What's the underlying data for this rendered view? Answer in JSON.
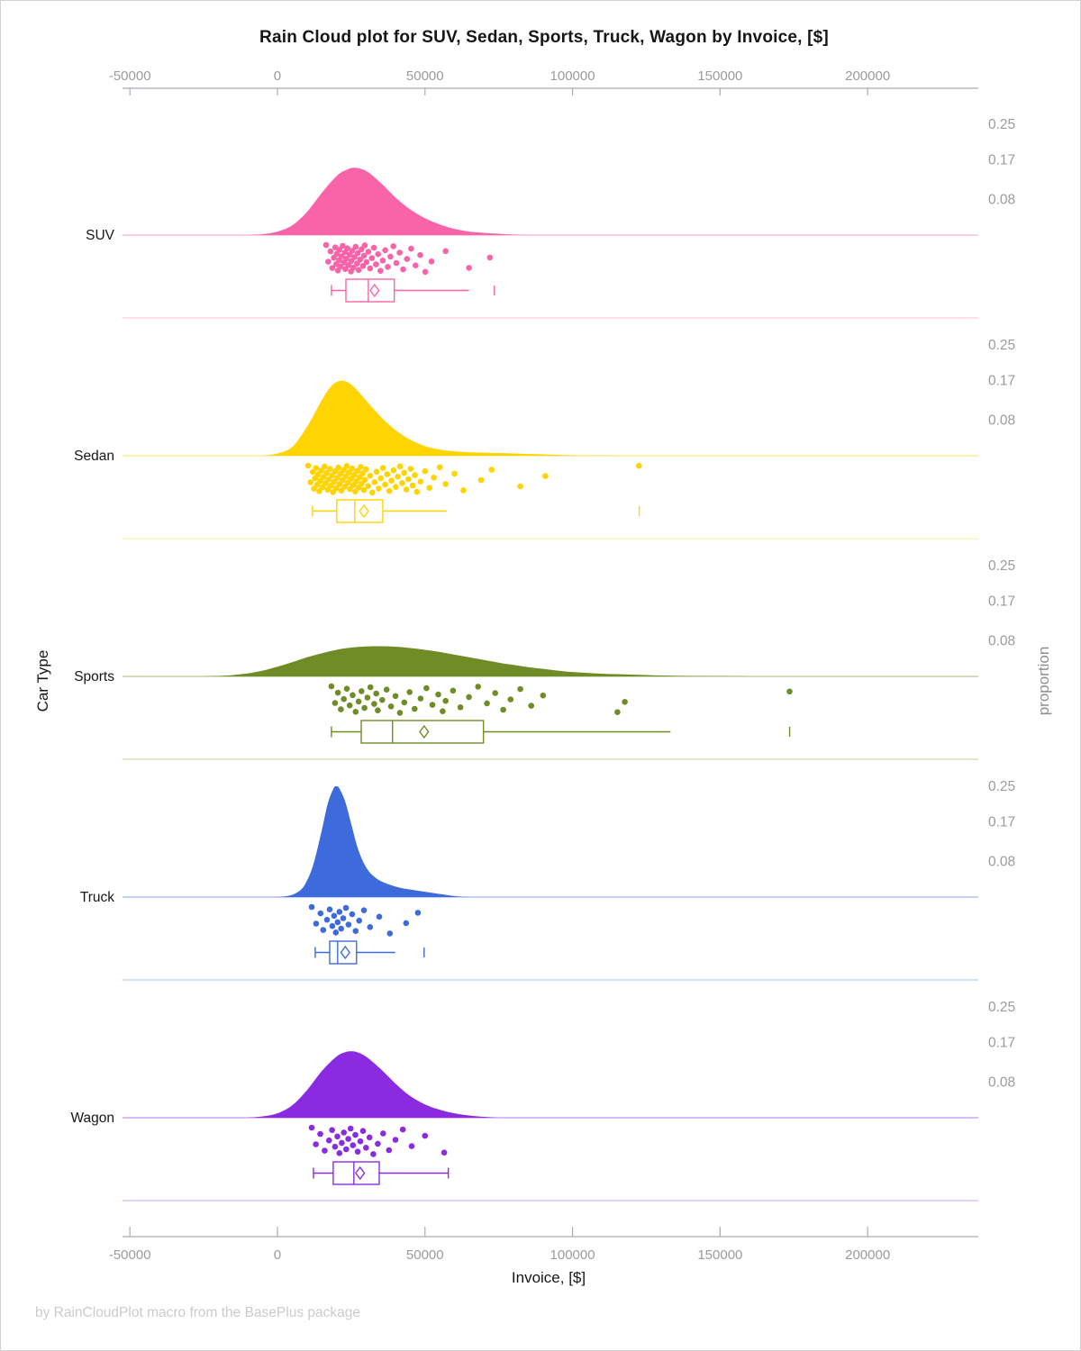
{
  "page": {
    "footer": "by RainCloudPlot macro from the BasePlus package",
    "background": "#ffffff",
    "border_color": "#d3d3d3"
  },
  "chart_data": {
    "type": "raincloud",
    "title": "Rain Cloud plot for SUV, Sedan, Sports, Truck, Wagon by Invoice, [$]",
    "xlabel": "Invoice, [$]",
    "ylabel_left": "Car Type",
    "ylabel_right": "proportion",
    "legend": "none",
    "grid": "off",
    "axis_text_color": "#9b9b9b",
    "axis_line_color": "#a9adb2",
    "text_color": "#161616",
    "x_axis": {
      "ticks": [
        -50000,
        0,
        50000,
        100000,
        150000,
        200000
      ],
      "range": [
        -52500,
        237500
      ],
      "position": "top and bottom"
    },
    "proportion_axis": {
      "tick_labels": [
        "0.25",
        "0.17",
        "0.08"
      ],
      "tick_values": [
        0.25,
        0.17,
        0.08
      ],
      "position": "right, repeated per panel"
    },
    "categories": [
      {
        "label": "SUV",
        "color": "#f964a9",
        "density": [
          [
            -10000,
            0
          ],
          [
            -5000,
            0.002
          ],
          [
            0,
            0.008
          ],
          [
            5000,
            0.022
          ],
          [
            10000,
            0.052
          ],
          [
            15000,
            0.095
          ],
          [
            20000,
            0.133
          ],
          [
            23000,
            0.146
          ],
          [
            26000,
            0.152
          ],
          [
            30000,
            0.145
          ],
          [
            35000,
            0.118
          ],
          [
            40000,
            0.085
          ],
          [
            45000,
            0.058
          ],
          [
            50000,
            0.038
          ],
          [
            55000,
            0.024
          ],
          [
            60000,
            0.014
          ],
          [
            65000,
            0.008
          ],
          [
            70000,
            0.005
          ],
          [
            75000,
            0.003
          ],
          [
            80000,
            0.001
          ],
          [
            85000,
            0
          ]
        ],
        "points": [
          16500,
          17200,
          18000,
          18600,
          19100,
          19600,
          19900,
          20100,
          20500,
          20900,
          21000,
          21300,
          21700,
          22100,
          22500,
          22900,
          23000,
          23300,
          23700,
          24100,
          24500,
          24900,
          25000,
          25300,
          25700,
          26100,
          26500,
          27000,
          27200,
          27500,
          28000,
          28500,
          29000,
          29300,
          29600,
          30200,
          30800,
          31400,
          32000,
          32700,
          33400,
          34100,
          34900,
          35700,
          36500,
          37400,
          38300,
          39300,
          40300,
          41400,
          42600,
          43900,
          45300,
          46800,
          48400,
          50100,
          52200,
          57000,
          64900,
          72000
        ],
        "box": {
          "whisker_low": 18300,
          "q1": 23200,
          "median": 30800,
          "mean": 32900,
          "q3": 39600,
          "whisker_high": 64900,
          "outliers": [
            73500
          ]
        }
      },
      {
        "label": "Sedan",
        "color": "#ffd400",
        "density": [
          [
            -5000,
            0
          ],
          [
            0,
            0.005
          ],
          [
            5000,
            0.02
          ],
          [
            10000,
            0.065
          ],
          [
            15000,
            0.125
          ],
          [
            18000,
            0.155
          ],
          [
            21000,
            0.169
          ],
          [
            24000,
            0.165
          ],
          [
            27000,
            0.148
          ],
          [
            30000,
            0.125
          ],
          [
            35000,
            0.088
          ],
          [
            40000,
            0.058
          ],
          [
            45000,
            0.036
          ],
          [
            50000,
            0.022
          ],
          [
            55000,
            0.014
          ],
          [
            60000,
            0.01
          ],
          [
            65000,
            0.008
          ],
          [
            70000,
            0.007
          ],
          [
            75000,
            0.006
          ],
          [
            80000,
            0.005
          ],
          [
            85000,
            0.004
          ],
          [
            90000,
            0.003
          ],
          [
            95000,
            0.002
          ],
          [
            100000,
            0.001
          ],
          [
            110000,
            0.0005
          ],
          [
            120000,
            0
          ]
        ],
        "points": [
          10400,
          11200,
          12000,
          12360,
          12720,
          13080,
          13440,
          13800,
          14160,
          14520,
          14880,
          15240,
          15600,
          15960,
          16320,
          16680,
          17040,
          17400,
          17760,
          18120,
          18480,
          18840,
          19200,
          19560,
          19920,
          20280,
          20640,
          21000,
          21360,
          21720,
          22080,
          22440,
          22800,
          23160,
          23520,
          23880,
          24240,
          24600,
          24960,
          25320,
          25680,
          26040,
          26400,
          26760,
          27120,
          27480,
          27840,
          28200,
          28560,
          28920,
          29280,
          29640,
          30000,
          30720,
          31440,
          32160,
          32880,
          33600,
          34320,
          35040,
          35760,
          36480,
          37200,
          37920,
          38640,
          39360,
          40080,
          40800,
          41520,
          42240,
          42960,
          43680,
          44400,
          45120,
          45840,
          46560,
          47280,
          48500,
          50000,
          51500,
          53000,
          55000,
          57000,
          60000,
          63000,
          69000,
          72600,
          82300,
          90800,
          122500
        ],
        "box": {
          "whisker_low": 11900,
          "q1": 20100,
          "median": 26200,
          "mean": 29300,
          "q3": 35700,
          "whisker_high": 57300,
          "outliers": [
            122600
          ]
        }
      },
      {
        "label": "Sports",
        "color": "#6f8c26",
        "density": [
          [
            -25000,
            0
          ],
          [
            -20000,
            0.001
          ],
          [
            -15000,
            0.003
          ],
          [
            -10000,
            0.007
          ],
          [
            -5000,
            0.013
          ],
          [
            0,
            0.022
          ],
          [
            5000,
            0.032
          ],
          [
            10000,
            0.043
          ],
          [
            15000,
            0.052
          ],
          [
            20000,
            0.06
          ],
          [
            25000,
            0.065
          ],
          [
            30000,
            0.0675
          ],
          [
            35000,
            0.068
          ],
          [
            40000,
            0.067
          ],
          [
            45000,
            0.064
          ],
          [
            50000,
            0.06
          ],
          [
            55000,
            0.055
          ],
          [
            60000,
            0.049
          ],
          [
            65000,
            0.043
          ],
          [
            70000,
            0.037
          ],
          [
            75000,
            0.031
          ],
          [
            80000,
            0.026
          ],
          [
            85000,
            0.021
          ],
          [
            90000,
            0.017
          ],
          [
            95000,
            0.013
          ],
          [
            100000,
            0.01
          ],
          [
            105000,
            0.008
          ],
          [
            110000,
            0.006
          ],
          [
            115000,
            0.005
          ],
          [
            120000,
            0.004
          ],
          [
            125000,
            0.003
          ],
          [
            130000,
            0.002
          ],
          [
            140000,
            0.001
          ],
          [
            150000,
            0.0005
          ],
          [
            160000,
            0
          ]
        ],
        "points": [
          18300,
          19500,
          20500,
          21500,
          22500,
          23500,
          24500,
          25500,
          26500,
          27500,
          28500,
          29500,
          30500,
          31500,
          32800,
          33500,
          34000,
          35500,
          37000,
          38500,
          40000,
          41500,
          43000,
          44800,
          46500,
          48500,
          50500,
          52500,
          54500,
          56000,
          57000,
          59500,
          62000,
          64900,
          68000,
          71000,
          73800,
          76500,
          79000,
          82300,
          86000,
          90000,
          115200,
          117700,
          173560
        ],
        "box": {
          "whisker_low": 18300,
          "q1": 28400,
          "median": 39000,
          "mean": 49700,
          "q3": 69800,
          "whisker_high": 133200,
          "outliers": [
            173560
          ]
        }
      },
      {
        "label": "Truck",
        "color": "#3e6bdb",
        "density": [
          [
            0,
            0
          ],
          [
            3000,
            0.002
          ],
          [
            6000,
            0.008
          ],
          [
            9000,
            0.025
          ],
          [
            12000,
            0.07
          ],
          [
            15000,
            0.15
          ],
          [
            17000,
            0.21
          ],
          [
            19000,
            0.245
          ],
          [
            20000,
            0.25
          ],
          [
            21000,
            0.245
          ],
          [
            23000,
            0.215
          ],
          [
            25000,
            0.165
          ],
          [
            27000,
            0.115
          ],
          [
            29000,
            0.08
          ],
          [
            31000,
            0.058
          ],
          [
            33000,
            0.045
          ],
          [
            35000,
            0.036
          ],
          [
            38000,
            0.028
          ],
          [
            41000,
            0.022
          ],
          [
            44000,
            0.018
          ],
          [
            47000,
            0.015
          ],
          [
            50000,
            0.012
          ],
          [
            53000,
            0.009
          ],
          [
            56000,
            0.006
          ],
          [
            59000,
            0.003
          ],
          [
            62000,
            0.001
          ],
          [
            65000,
            0
          ]
        ],
        "points": [
          11600,
          13100,
          14600,
          15500,
          16800,
          17700,
          18600,
          19200,
          19800,
          20400,
          21000,
          21600,
          22300,
          23200,
          24100,
          25300,
          26500,
          27700,
          29300,
          31400,
          34500,
          38100,
          43600,
          47600
        ],
        "box": {
          "whisker_low": 12800,
          "q1": 17700,
          "median": 20400,
          "mean": 23000,
          "q3": 26800,
          "whisker_high": 39900,
          "outliers": [
            49700
          ]
        }
      },
      {
        "label": "Wagon",
        "color": "#8a2be2",
        "density": [
          [
            -10000,
            0
          ],
          [
            -5000,
            0.003
          ],
          [
            0,
            0.01
          ],
          [
            5000,
            0.028
          ],
          [
            10000,
            0.062
          ],
          [
            15000,
            0.105
          ],
          [
            20000,
            0.138
          ],
          [
            23000,
            0.148
          ],
          [
            25000,
            0.15
          ],
          [
            27000,
            0.148
          ],
          [
            30000,
            0.138
          ],
          [
            35000,
            0.11
          ],
          [
            40000,
            0.077
          ],
          [
            45000,
            0.049
          ],
          [
            50000,
            0.03
          ],
          [
            55000,
            0.018
          ],
          [
            60000,
            0.01
          ],
          [
            65000,
            0.005
          ],
          [
            70000,
            0.002
          ],
          [
            75000,
            0
          ]
        ],
        "points": [
          11600,
          13000,
          14500,
          16000,
          17500,
          18500,
          19500,
          20300,
          21000,
          21800,
          22500,
          23300,
          24000,
          24800,
          25600,
          26400,
          27200,
          28100,
          29000,
          30000,
          31200,
          32500,
          34000,
          35800,
          37800,
          40000,
          42500,
          45500,
          50000,
          56500
        ],
        "box": {
          "whisker_low": 12200,
          "q1": 18900,
          "median": 25900,
          "mean": 28000,
          "q3": 34500,
          "whisker_high": 57900,
          "outliers": []
        }
      }
    ]
  }
}
